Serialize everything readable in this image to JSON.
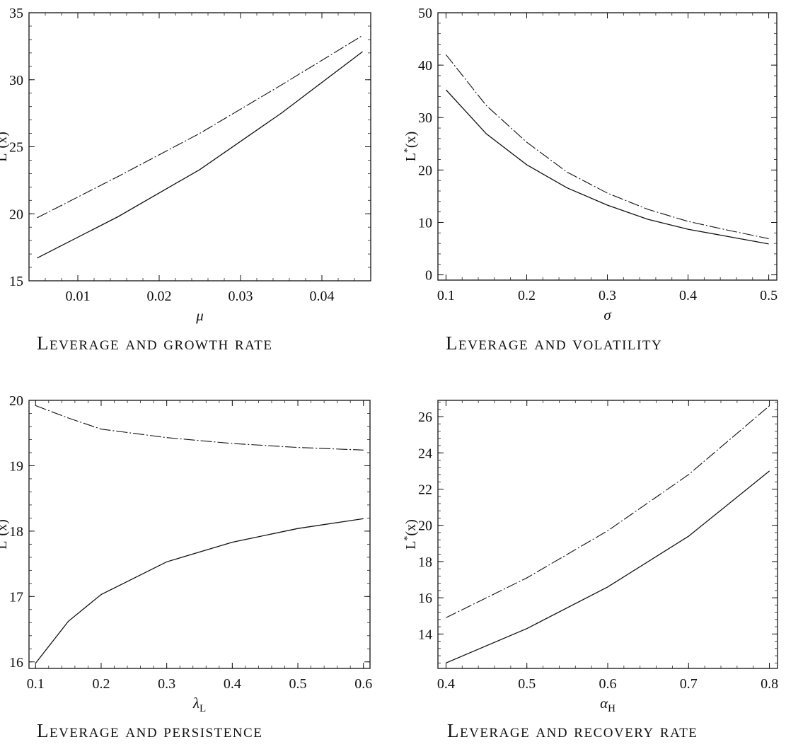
{
  "chart_data": [
    {
      "type": "line",
      "caption": "Leverage and growth rate",
      "xlabel": "μ",
      "ylabel": "L*(x)",
      "xlim": [
        0.004,
        0.046
      ],
      "ylim": [
        15,
        35
      ],
      "xticks": [
        0.01,
        0.02,
        0.03,
        0.04
      ],
      "xtick_labels": [
        "0.01",
        "0.02",
        "0.03",
        "0.04"
      ],
      "yticks": [
        15,
        20,
        25,
        30,
        35
      ],
      "ytick_labels": [
        "15",
        "20",
        "25",
        "30",
        "35"
      ],
      "grid": false,
      "series": [
        {
          "style": "solid",
          "x": [
            0.005,
            0.015,
            0.025,
            0.035,
            0.045
          ],
          "y": [
            16.7,
            19.8,
            23.3,
            27.5,
            32.1
          ]
        },
        {
          "style": "dashed",
          "x": [
            0.005,
            0.015,
            0.025,
            0.035,
            0.045
          ],
          "y": [
            19.7,
            22.8,
            26.0,
            29.6,
            33.3
          ]
        }
      ]
    },
    {
      "type": "line",
      "caption": "Leverage and volatility",
      "xlabel": "σ",
      "ylabel": "L*(x)",
      "xlim": [
        0.09,
        0.51
      ],
      "ylim": [
        -1,
        50
      ],
      "xticks": [
        0.1,
        0.2,
        0.3,
        0.4,
        0.5
      ],
      "xtick_labels": [
        "0.1",
        "0.2",
        "0.3",
        "0.4",
        "0.5"
      ],
      "yticks": [
        0,
        10,
        20,
        30,
        40,
        50
      ],
      "ytick_labels": [
        "0",
        "10",
        "20",
        "30",
        "40",
        "50"
      ],
      "grid": false,
      "series": [
        {
          "style": "solid",
          "x": [
            0.1,
            0.15,
            0.2,
            0.25,
            0.3,
            0.35,
            0.4,
            0.45,
            0.5
          ],
          "y": [
            35.3,
            26.9,
            21.0,
            16.6,
            13.3,
            10.6,
            8.7,
            7.3,
            5.9
          ]
        },
        {
          "style": "dashed",
          "x": [
            0.1,
            0.15,
            0.2,
            0.25,
            0.3,
            0.35,
            0.4,
            0.45,
            0.5
          ],
          "y": [
            42.0,
            32.3,
            25.3,
            19.6,
            15.6,
            12.5,
            10.2,
            8.5,
            6.9
          ]
        }
      ]
    },
    {
      "type": "line",
      "caption": "Leverage and persistence",
      "xlabel": "λL",
      "ylabel": "L*(x)",
      "xlim": [
        0.09,
        0.61
      ],
      "ylim": [
        15.9,
        20.0
      ],
      "xticks": [
        0.1,
        0.2,
        0.3,
        0.4,
        0.5,
        0.6
      ],
      "xtick_labels": [
        "0.1",
        "0.2",
        "0.3",
        "0.4",
        "0.5",
        "0.6"
      ],
      "yticks": [
        16,
        17,
        18,
        19,
        20
      ],
      "ytick_labels": [
        "16",
        "17",
        "18",
        "19",
        "20"
      ],
      "grid": false,
      "series": [
        {
          "style": "solid",
          "x": [
            0.1,
            0.15,
            0.2,
            0.3,
            0.4,
            0.5,
            0.6
          ],
          "y": [
            15.98,
            16.62,
            17.03,
            17.53,
            17.83,
            18.04,
            18.19
          ]
        },
        {
          "style": "dashed",
          "x": [
            0.1,
            0.15,
            0.2,
            0.3,
            0.4,
            0.5,
            0.6
          ],
          "y": [
            19.92,
            19.73,
            19.56,
            19.43,
            19.34,
            19.28,
            19.24
          ]
        }
      ]
    },
    {
      "type": "line",
      "caption": "Leverage and recovery rate",
      "xlabel": "αH",
      "ylabel": "L*(x)",
      "xlim": [
        0.39,
        0.81
      ],
      "ylim": [
        12.1,
        26.9
      ],
      "xticks": [
        0.4,
        0.5,
        0.6,
        0.7,
        0.8
      ],
      "xtick_labels": [
        "0.4",
        "0.5",
        "0.6",
        "0.7",
        "0.8"
      ],
      "yticks": [
        14,
        16,
        18,
        20,
        22,
        24,
        26
      ],
      "ytick_labels": [
        "14",
        "16",
        "18",
        "20",
        "22",
        "24",
        "26"
      ],
      "grid": false,
      "series": [
        {
          "style": "solid",
          "x": [
            0.4,
            0.5,
            0.6,
            0.7,
            0.8
          ],
          "y": [
            12.4,
            14.3,
            16.6,
            19.4,
            23.0
          ]
        },
        {
          "style": "dashed",
          "x": [
            0.4,
            0.5,
            0.6,
            0.7,
            0.8
          ],
          "y": [
            14.9,
            17.1,
            19.7,
            22.8,
            26.6
          ]
        }
      ]
    }
  ]
}
